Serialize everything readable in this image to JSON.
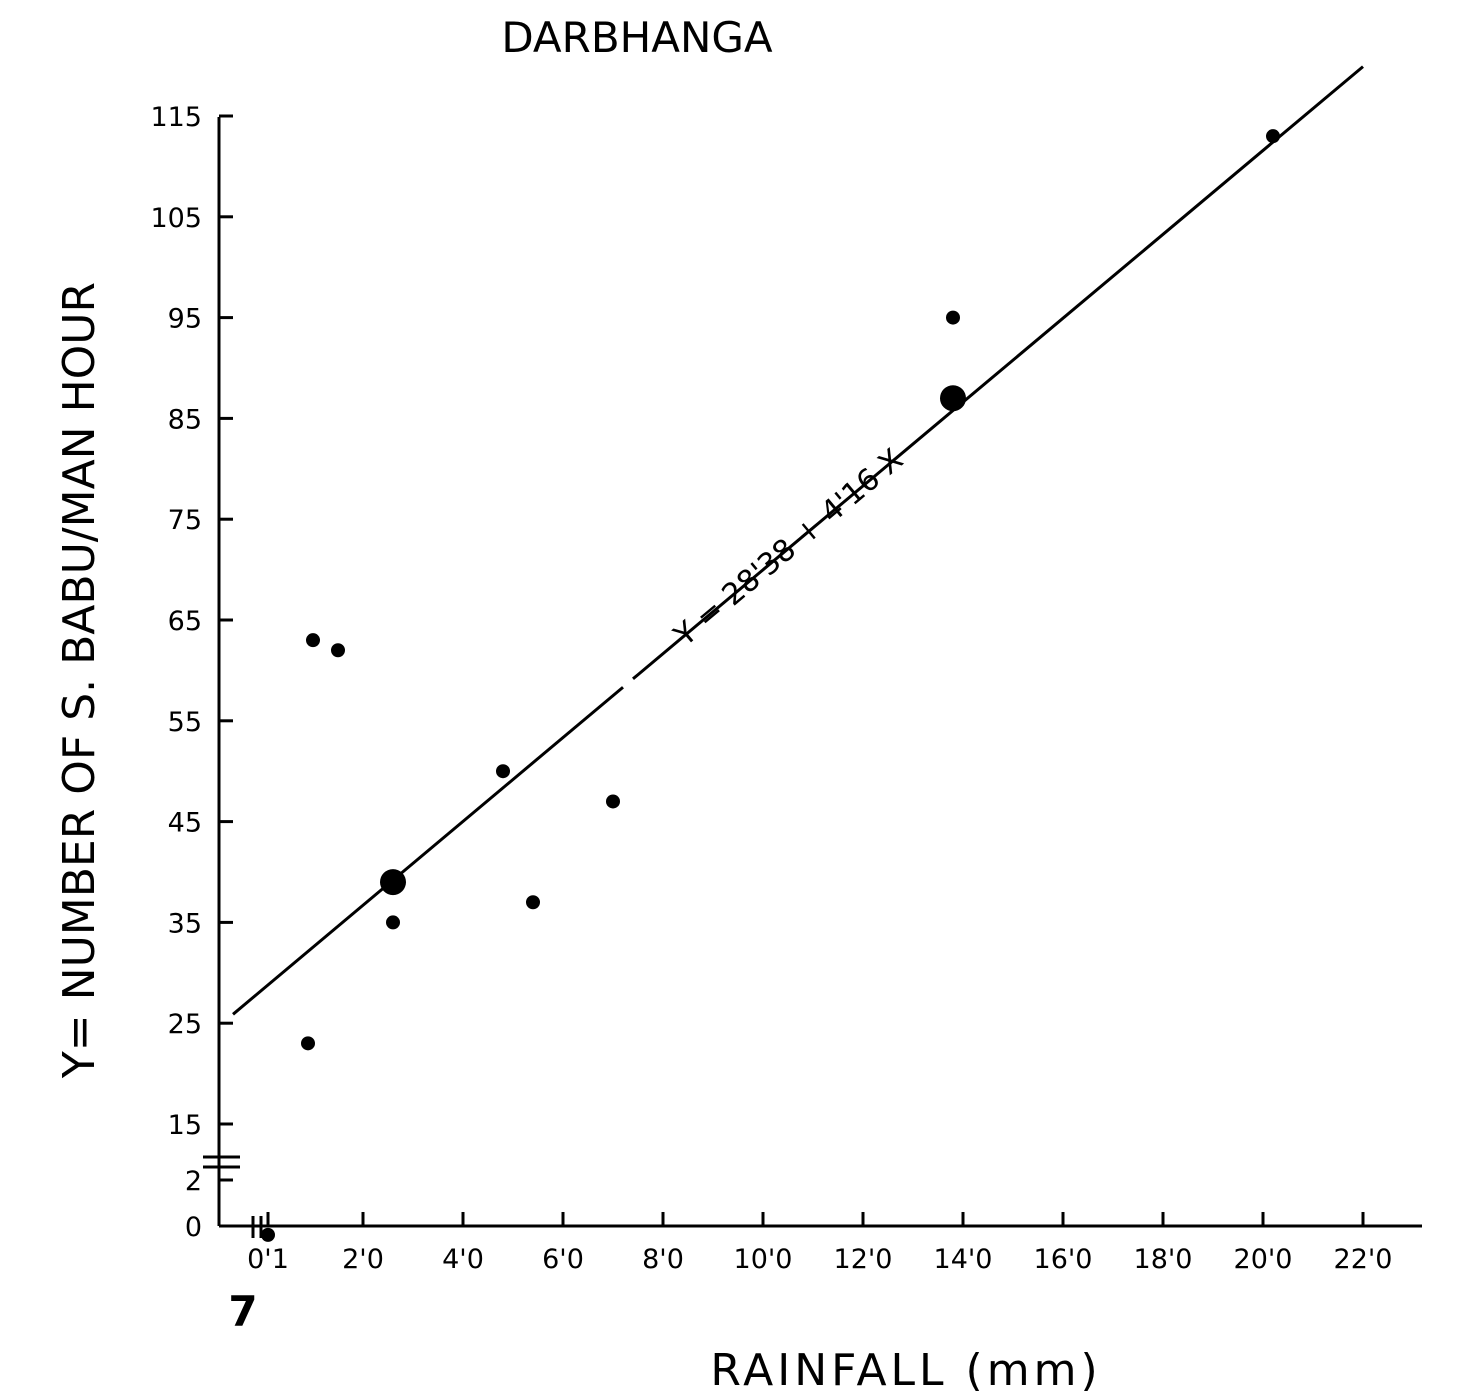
{
  "chart_data": {
    "type": "scatter",
    "title": "DARBHANGA",
    "xlabel": "RAINFALL (mm)",
    "ylabel": "Y= NUMBER OF S. BABU/MAN HOUR",
    "figure_number": "7",
    "x_axis_break": true,
    "y_axis_break": true,
    "grid": false,
    "legend": "none",
    "x_ticks": [
      {
        "value": 0.1,
        "label": "0'1"
      },
      {
        "value": 2.0,
        "label": "2'0"
      },
      {
        "value": 4.0,
        "label": "4'0"
      },
      {
        "value": 6.0,
        "label": "6'0"
      },
      {
        "value": 8.0,
        "label": "8'0"
      },
      {
        "value": 10.0,
        "label": "10'0"
      },
      {
        "value": 12.0,
        "label": "12'0"
      },
      {
        "value": 14.0,
        "label": "14'0"
      },
      {
        "value": 16.0,
        "label": "16'0"
      },
      {
        "value": 18.0,
        "label": "18'0"
      },
      {
        "value": 20.0,
        "label": "20'0"
      },
      {
        "value": 22.0,
        "label": "22'0"
      }
    ],
    "y_ticks": [
      {
        "value": 0,
        "label": "0"
      },
      {
        "value": 2,
        "label": "2"
      },
      {
        "value": 15,
        "label": "15"
      },
      {
        "value": 25,
        "label": "25"
      },
      {
        "value": 35,
        "label": "35"
      },
      {
        "value": 45,
        "label": "45"
      },
      {
        "value": 55,
        "label": "55"
      },
      {
        "value": 65,
        "label": "65"
      },
      {
        "value": 75,
        "label": "75"
      },
      {
        "value": 85,
        "label": "85"
      },
      {
        "value": 95,
        "label": "95"
      },
      {
        "value": 105,
        "label": "105"
      },
      {
        "value": 115,
        "label": "115"
      }
    ],
    "xlim": [
      0.1,
      22.0
    ],
    "ylim": [
      0,
      115
    ],
    "points": [
      {
        "x": 0.1,
        "y": 4
      },
      {
        "x": 0.9,
        "y": 23
      },
      {
        "x": 1.0,
        "y": 63
      },
      {
        "x": 1.5,
        "y": 62
      },
      {
        "x": 2.6,
        "y": 35
      },
      {
        "x": 4.8,
        "y": 50
      },
      {
        "x": 5.4,
        "y": 37
      },
      {
        "x": 7.0,
        "y": 47
      },
      {
        "x": 13.8,
        "y": 95
      },
      {
        "x": 20.2,
        "y": 113
      }
    ],
    "highlighted_points": [
      {
        "x": 2.6,
        "y": 39
      },
      {
        "x": 13.8,
        "y": 87
      }
    ],
    "regression": {
      "label": "Y = 28'38 + 4'16 X",
      "intercept": 28.38,
      "slope": 4.16,
      "x_start": -0.6,
      "x_end": 22.0
    }
  }
}
